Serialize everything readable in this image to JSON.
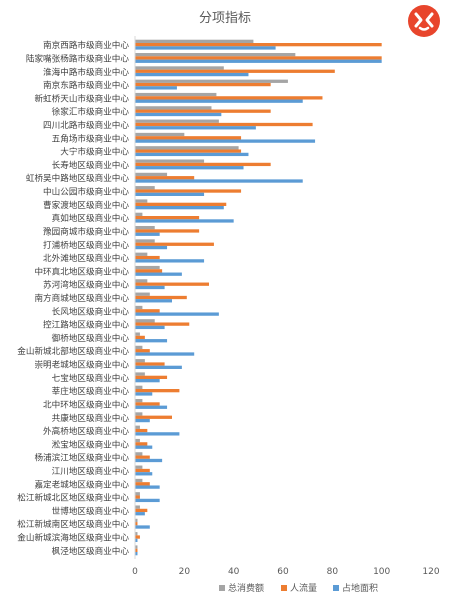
{
  "chart_data": {
    "type": "bar",
    "orientation": "horizontal",
    "title": "分项指标",
    "xlim": [
      0,
      120
    ],
    "xticks": [
      "0",
      "20",
      "40",
      "60",
      "80",
      "100",
      "120"
    ],
    "legend_position": "bottom",
    "grid": false,
    "categories": [
      "南京西路市级商业中心",
      "陆家嘴张杨路市级商业中心",
      "淮海中路市级商业中心",
      "南京东路市级商业中心",
      "新虹桥天山市级商业中心",
      "徐家汇市级商业中心",
      "四川北路市级商业中心",
      "五角场市级商业中心",
      "大宁市级商业中心",
      "长寿地区级商业中心",
      "虹桥吴中路地区级商业中心",
      "中山公园市级商业中心",
      "曹家渡地区级商业中心",
      "真如地区级商业中心",
      "豫园商城市级商业中心",
      "打浦桥地区级商业中心",
      "北外滩地区级商业中心",
      "中环真北地区级商业中心",
      "苏河湾地区级商业中心",
      "南方商城地区级商业中心",
      "长风地区级商业中心",
      "控江路地区级商业中心",
      "御桥地区级商业中心",
      "金山新城北部地区级商业中心",
      "崇明老城地区级商业中心",
      "七宝地区级商业中心",
      "莘庄地区级商业中心",
      "北中环地区级商业中心",
      "共康地区级商业中心",
      "外高桥地区级商业中心",
      "淞宝地区级商业中心",
      "杨浦滨江地区级商业中心",
      "江川地区级商业中心",
      "嘉定老城地区级商业中心",
      "松江新城北区地区级商业中心",
      "世博地区级商业中心",
      "松江新城南区地区级商业中心",
      "金山新城滨海地区级商业中心",
      "枫泾地区级商业中心"
    ],
    "series": [
      {
        "name": "总消费额",
        "color": "#a5a5a5",
        "values": [
          48,
          65,
          36,
          62,
          33,
          31,
          34,
          20,
          42,
          28,
          13,
          8,
          5,
          3,
          8,
          8,
          5,
          10,
          5,
          6,
          3,
          8,
          2,
          3,
          4,
          4,
          3,
          3,
          3,
          2,
          2,
          3,
          3,
          3,
          2,
          2,
          1,
          1,
          1
        ]
      },
      {
        "name": "人流量",
        "color": "#ed7d31",
        "values": [
          100,
          100,
          81,
          55,
          76,
          55,
          72,
          43,
          43,
          55,
          24,
          43,
          37,
          26,
          26,
          32,
          10,
          11,
          30,
          21,
          10,
          22,
          4,
          6,
          12,
          13,
          18,
          10,
          15,
          5,
          5,
          6,
          6,
          6,
          2,
          5,
          1,
          2,
          1
        ]
      },
      {
        "name": "占地面积",
        "color": "#5b9bd5",
        "values": [
          57,
          100,
          46,
          17,
          68,
          35,
          49,
          73,
          46,
          44,
          68,
          28,
          36,
          40,
          10,
          13,
          28,
          19,
          12,
          15,
          34,
          12,
          13,
          24,
          19,
          10,
          7,
          13,
          6,
          18,
          7,
          11,
          7,
          10,
          10,
          4,
          6,
          1,
          1
        ]
      }
    ]
  },
  "badge": {
    "icon": "brand-logo-icon",
    "color": "#e8452c"
  }
}
